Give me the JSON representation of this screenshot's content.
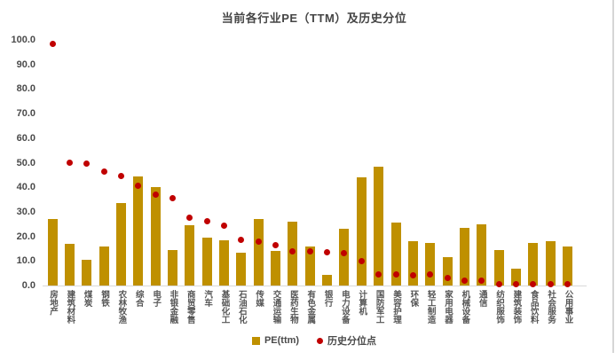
{
  "chart_data": {
    "type": "bar",
    "title": "当前各行业PE（TTM）及历史分位",
    "categories": [
      "房地产",
      "建筑材料",
      "煤炭",
      "钢铁",
      "农林牧渔",
      "综合",
      "电子",
      "非银金融",
      "商贸零售",
      "汽车",
      "基础化工",
      "石油石化",
      "传媒",
      "交通运输",
      "医药生物",
      "有色金属",
      "银行",
      "电力设备",
      "计算机",
      "国防军工",
      "美容护理",
      "环保",
      "轻工制造",
      "家用电器",
      "机械设备",
      "通信",
      "纺织服饰",
      "建筑装饰",
      "食品饮料",
      "社会服务",
      "公用事业"
    ],
    "series": [
      {
        "name": "PE(ttm)",
        "type": "bar",
        "color": "#BF9000",
        "values": [
          27,
          17,
          10.5,
          16,
          33.5,
          44.5,
          40,
          14.5,
          24.5,
          19.5,
          18.5,
          13.5,
          27,
          14,
          26,
          16,
          4.5,
          23,
          44,
          48.5,
          25.5,
          18,
          17.5,
          11.5,
          23.5,
          25,
          14.5,
          7,
          17.5,
          18,
          16
        ]
      },
      {
        "name": "历史分位点",
        "type": "scatter",
        "color": "#C00000",
        "values": [
          98.5,
          50,
          49.5,
          46.5,
          44.5,
          40.5,
          37,
          35.5,
          27.5,
          26,
          24.5,
          18.5,
          18,
          16.5,
          14,
          14,
          13.5,
          13,
          10,
          4.5,
          4.5,
          4,
          4.5,
          3,
          2,
          2,
          0.5,
          0.5,
          0.5,
          0.5,
          0.5
        ]
      }
    ],
    "ylim": [
      0,
      100
    ],
    "yticks": [
      "100.0",
      "90.0",
      "80.0",
      "70.0",
      "60.0",
      "50.0",
      "40.0",
      "30.0",
      "20.0",
      "10.0",
      "0.0"
    ],
    "xlabel": "",
    "ylabel": "",
    "grid": false,
    "legend_position": "bottom"
  }
}
